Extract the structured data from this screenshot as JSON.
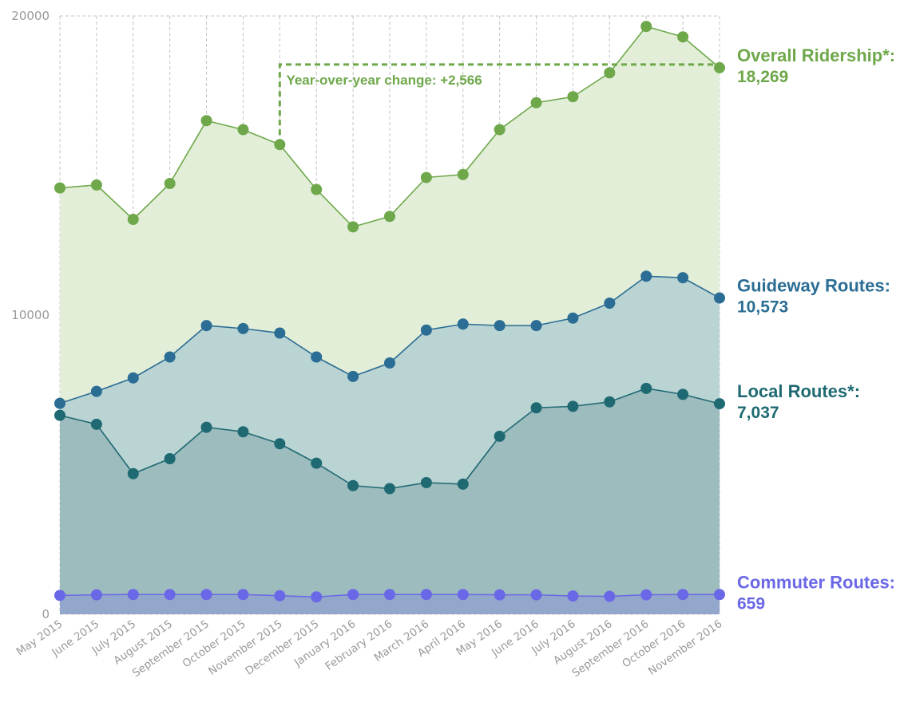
{
  "chart_data": {
    "type": "area",
    "x": [
      "May 2015",
      "June 2015",
      "July 2015",
      "August 2015",
      "September 2015",
      "October 2015",
      "November 2015",
      "December 2015",
      "January 2016",
      "February 2016",
      "March 2016",
      "April 2016",
      "May 2016",
      "June 2016",
      "July 2016",
      "August 2016",
      "September 2016",
      "October 2016",
      "November 2016"
    ],
    "ylim": [
      0,
      20000
    ],
    "yticks": [
      "0",
      "10000",
      "20000"
    ],
    "grid": true,
    "series": [
      {
        "name": "Overall Ridership*:",
        "end_label": "18,269",
        "color": "#6ea84a",
        "fill": "#e2eed8",
        "values": [
          14250,
          14350,
          13200,
          14400,
          16500,
          16200,
          15700,
          14200,
          12950,
          13300,
          14600,
          14700,
          16200,
          17100,
          17300,
          18100,
          19650,
          19300,
          18269
        ]
      },
      {
        "name": "Guideway Routes:",
        "end_label": "10,573",
        "color": "#2b6d94",
        "fill": "#bad3d3",
        "values": [
          7050,
          7450,
          7900,
          8600,
          9650,
          9550,
          9400,
          8600,
          7950,
          8400,
          9500,
          9700,
          9650,
          9650,
          9900,
          10400,
          11300,
          11250,
          10573
        ]
      },
      {
        "name": "Local Routes*:",
        "end_label": "7,037",
        "color": "#1f6a72",
        "fill": "#9dbcbe",
        "values": [
          6650,
          6350,
          4700,
          5200,
          6250,
          6100,
          5700,
          5050,
          4300,
          4200,
          4400,
          4350,
          5950,
          6900,
          6950,
          7100,
          7550,
          7350,
          7037
        ]
      },
      {
        "name": "Commuter Routes:",
        "end_label": "659",
        "color": "#6a68e6",
        "fill": "#93a6cc",
        "values": [
          630,
          650,
          660,
          660,
          660,
          660,
          620,
          580,
          660,
          660,
          660,
          660,
          650,
          650,
          610,
          600,
          650,
          660,
          659
        ]
      }
    ],
    "annotation": {
      "text": "Year-over-year change: +2,566",
      "from_index": 6,
      "to_index": 18,
      "y_value": 18269
    }
  }
}
